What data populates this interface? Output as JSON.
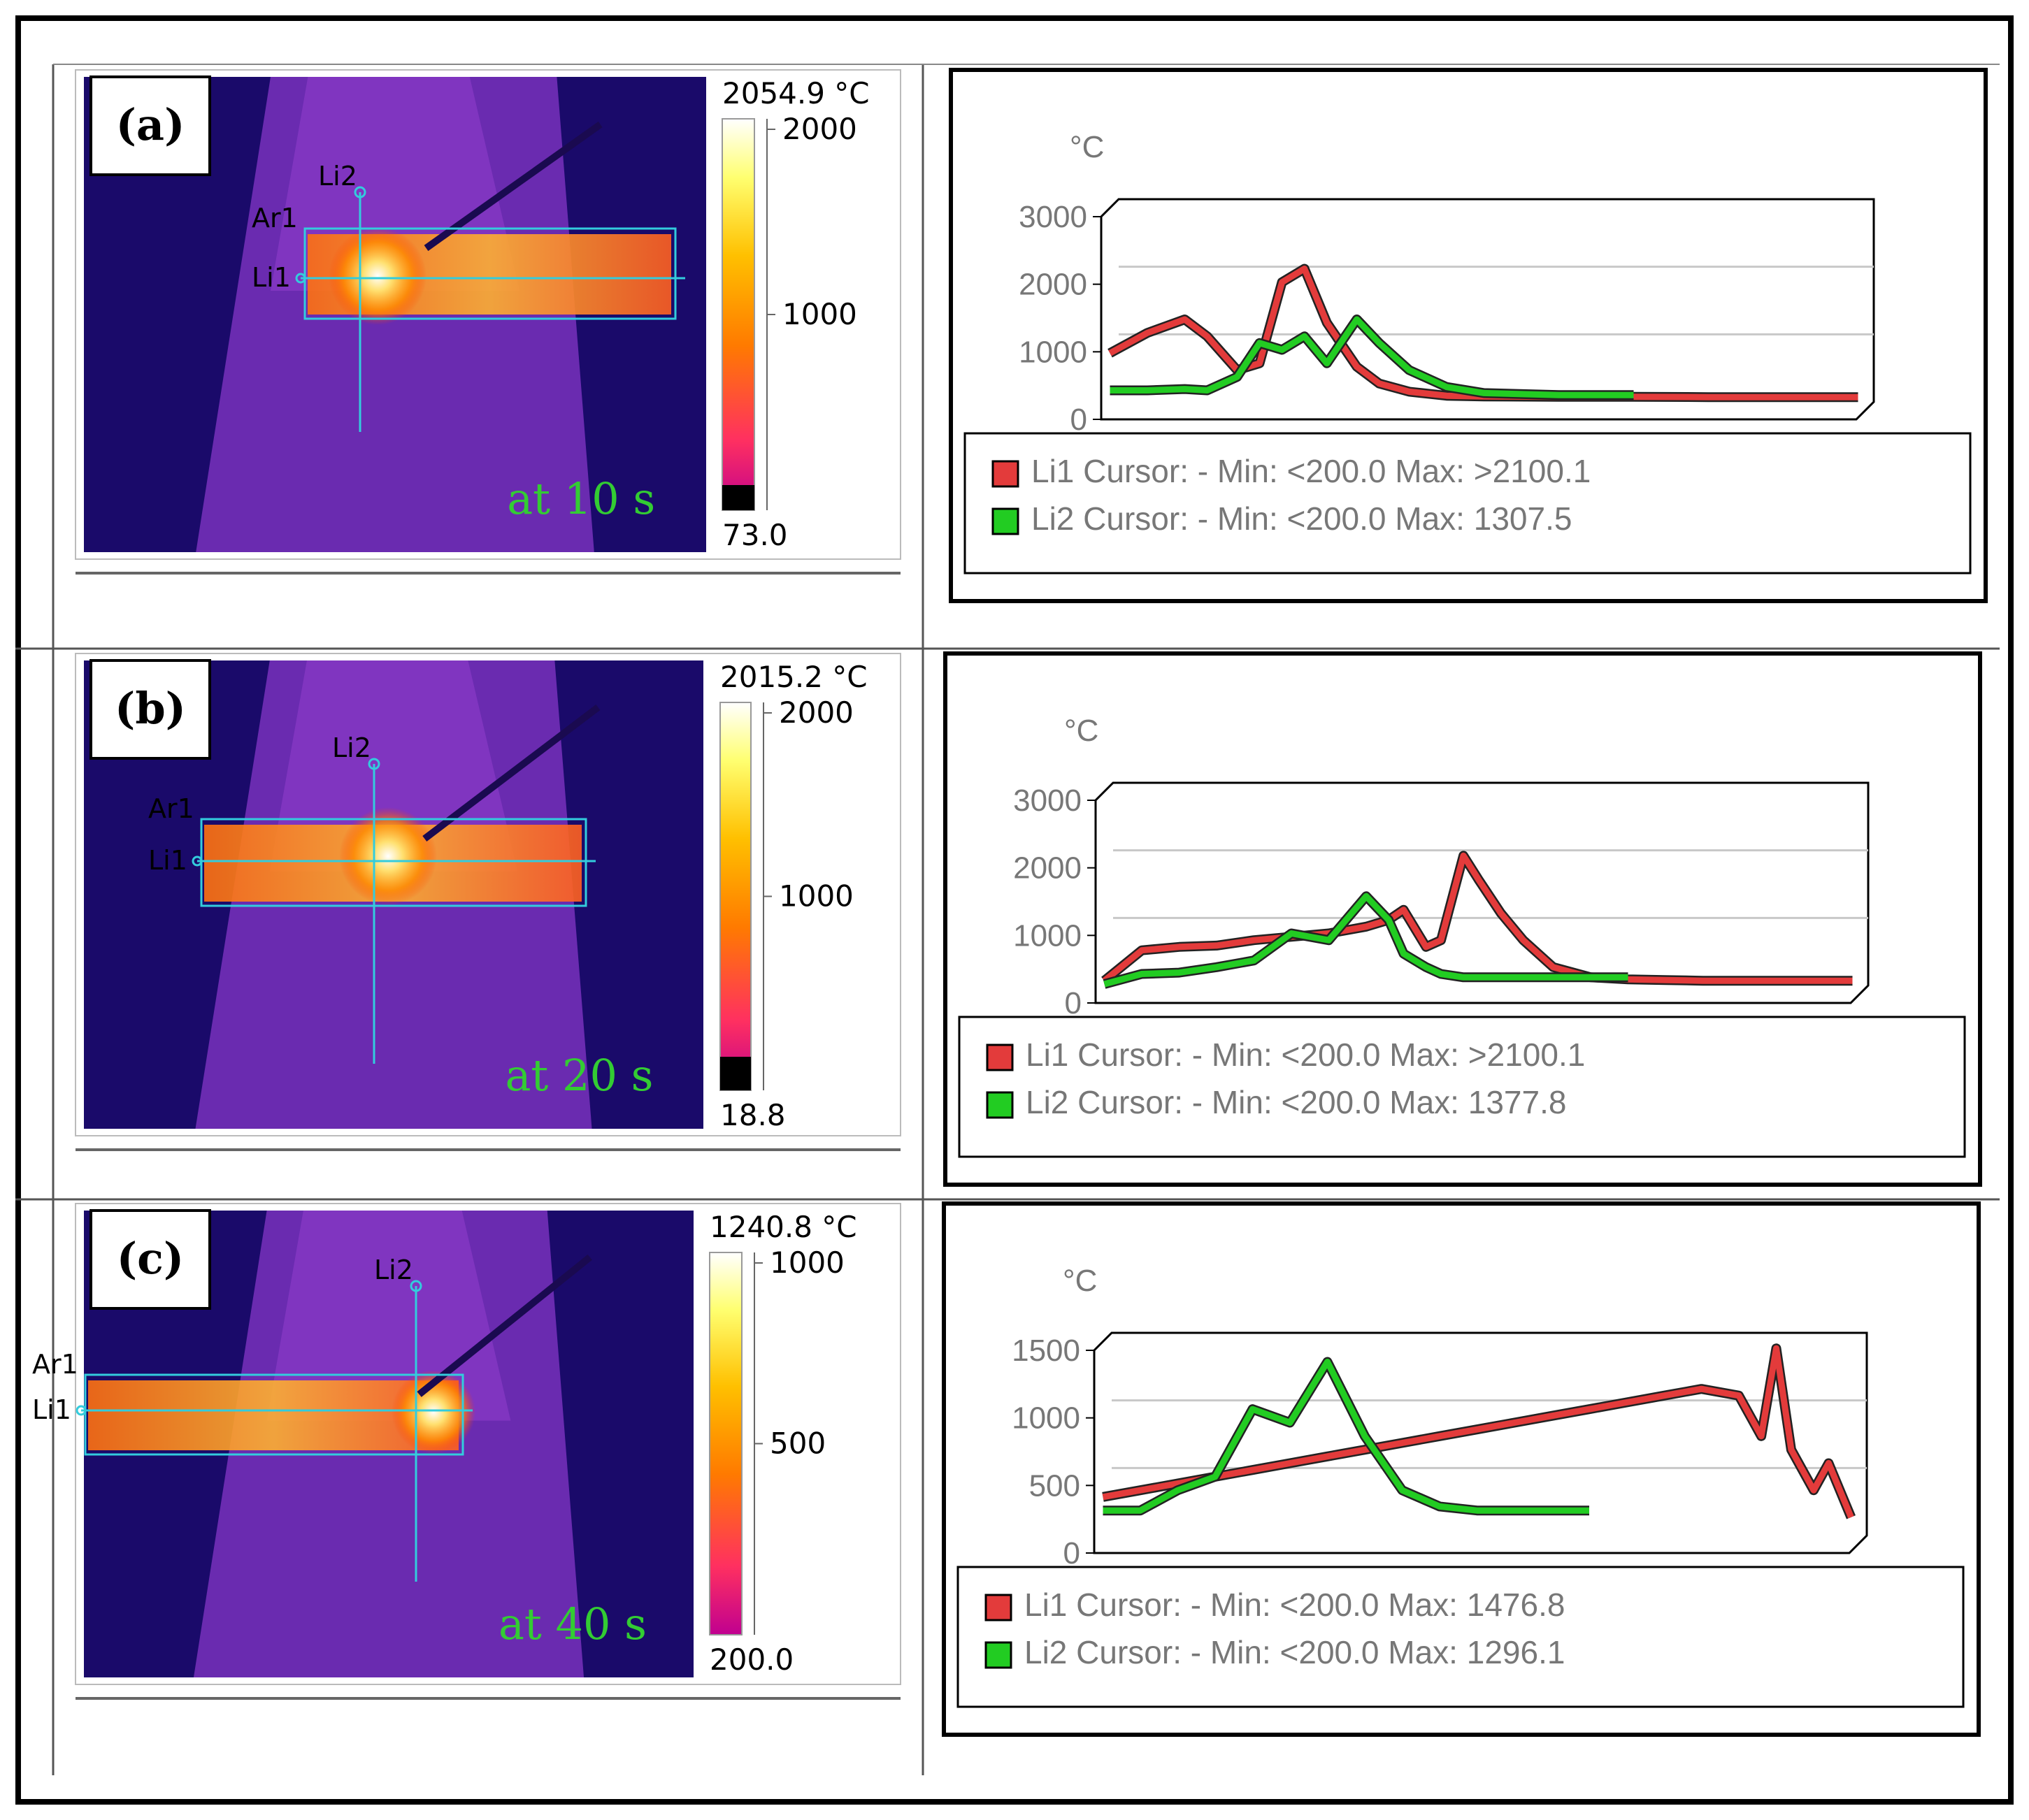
{
  "panels": [
    {
      "label": "(a)",
      "time_label": "at 10 s",
      "colorbar": {
        "max_label": "2054.9 °C",
        "min_label": "73.0",
        "ticks": [
          "2000",
          "1000"
        ]
      },
      "markers": {
        "li2": "Li2",
        "ar1": "Ar1",
        "li1": "Li1"
      },
      "chart": {
        "unit": "°C",
        "yticks": [
          "3000",
          "2000",
          "1000",
          "0"
        ],
        "legend": [
          "Li1 Cursor: - Min: <200.0 Max: >2100.1",
          "Li2 Cursor: - Min: <200.0 Max: 1307.5"
        ]
      }
    },
    {
      "label": "(b)",
      "time_label": "at 20 s",
      "colorbar": {
        "max_label": "2015.2 °C",
        "min_label": "18.8",
        "ticks": [
          "2000",
          "1000"
        ]
      },
      "markers": {
        "li2": "Li2",
        "ar1": "Ar1",
        "li1": "Li1"
      },
      "chart": {
        "unit": "°C",
        "yticks": [
          "3000",
          "2000",
          "1000",
          "0"
        ],
        "legend": [
          "Li1 Cursor: - Min: <200.0 Max: >2100.1",
          "Li2 Cursor: - Min: <200.0 Max: 1377.8"
        ]
      }
    },
    {
      "label": "(c)",
      "time_label": "at 40 s",
      "colorbar": {
        "max_label": "1240.8 °C",
        "min_label": "200.0",
        "ticks": [
          "1000",
          "500"
        ]
      },
      "markers": {
        "li2": "Li2",
        "ar1": "Ar1",
        "li1": "Li1"
      },
      "chart": {
        "unit": "°C",
        "yticks": [
          "1500",
          "1000",
          "500",
          "0"
        ],
        "legend": [
          "Li1 Cursor: - Min: <200.0 Max: 1476.8",
          "Li2 Cursor: - Min: <200.0 Max: 1296.1"
        ]
      }
    }
  ],
  "colors": {
    "li1": "#e33b3b",
    "li2": "#22cc22",
    "cursor": "#33ccdd",
    "time_text": "#33cc33"
  },
  "chart_data": [
    {
      "type": "line",
      "ylim": [
        0,
        3000
      ],
      "ylabel": "°C",
      "grid": true,
      "legend_position": "bottom",
      "x": [
        0,
        0.05,
        0.1,
        0.13,
        0.17,
        0.2,
        0.23,
        0.26,
        0.29,
        0.33,
        0.36,
        0.4,
        0.45,
        0.5,
        0.6,
        0.7,
        0.8,
        0.9,
        1.0
      ],
      "series": [
        {
          "name": "Li1",
          "values": [
            850,
            1150,
            1350,
            1100,
            600,
            700,
            1900,
            2100,
            1300,
            650,
            400,
            280,
            220,
            210,
            205,
            205,
            200,
            200,
            200
          ]
        },
        {
          "name": "Li2",
          "values": [
            300,
            300,
            320,
            300,
            500,
            1000,
            900,
            1100,
            700,
            1350,
            1000,
            600,
            350,
            260,
            230,
            230,
            null,
            null,
            null
          ]
        }
      ]
    },
    {
      "type": "line",
      "ylim": [
        0,
        3000
      ],
      "ylabel": "°C",
      "grid": true,
      "legend_position": "bottom",
      "x": [
        0,
        0.05,
        0.1,
        0.15,
        0.2,
        0.25,
        0.3,
        0.35,
        0.38,
        0.4,
        0.43,
        0.45,
        0.48,
        0.5,
        0.53,
        0.56,
        0.6,
        0.65,
        0.7,
        0.75,
        0.8,
        0.85,
        0.9,
        1.0
      ],
      "series": [
        {
          "name": "Li1",
          "values": [
            200,
            650,
            700,
            720,
            800,
            850,
            900,
            1000,
            1100,
            1250,
            700,
            800,
            2050,
            1700,
            1200,
            800,
            400,
            250,
            220,
            210,
            200,
            200,
            200,
            200
          ]
        },
        {
          "name": "Li2",
          "values": [
            150,
            300,
            320,
            400,
            500,
            900,
            800,
            1450,
            1100,
            600,
            400,
            300,
            250,
            250,
            250,
            250,
            250,
            250,
            250,
            null,
            null,
            null,
            null,
            null
          ]
        }
      ]
    },
    {
      "type": "line",
      "ylim": [
        0,
        1500
      ],
      "ylabel": "°C",
      "grid": true,
      "legend_position": "bottom",
      "x": [
        0,
        0.05,
        0.1,
        0.15,
        0.2,
        0.25,
        0.3,
        0.35,
        0.4,
        0.45,
        0.5,
        0.55,
        0.6,
        0.65,
        0.7,
        0.75,
        0.8,
        0.85,
        0.88,
        0.9,
        0.92,
        0.95,
        0.97,
        1.0
      ],
      "series": [
        {
          "name": "Li1",
          "values": [
            350,
            400,
            450,
            500,
            550,
            600,
            650,
            700,
            750,
            800,
            850,
            900,
            950,
            1000,
            1050,
            1100,
            1150,
            1100,
            800,
            1450,
            700,
            400,
            600,
            200
          ]
        },
        {
          "name": "Li2",
          "values": [
            250,
            250,
            400,
            500,
            1000,
            900,
            1350,
            800,
            400,
            280,
            250,
            250,
            250,
            250,
            null,
            null,
            null,
            null,
            null,
            null,
            null,
            null,
            null,
            null
          ]
        }
      ]
    }
  ]
}
